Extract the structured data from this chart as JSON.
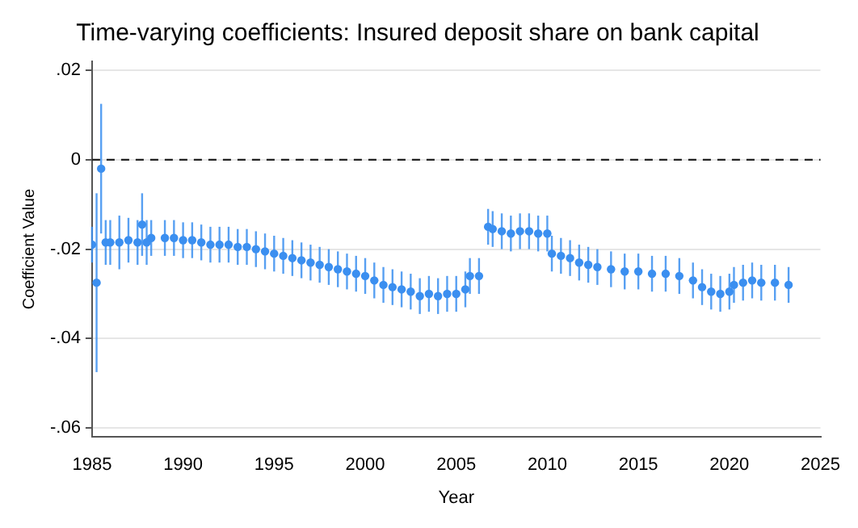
{
  "chart_data": {
    "type": "scatter",
    "title": "Time-varying coefficients: Insured deposit share on bank capital",
    "xlabel": "Year",
    "ylabel": "Coefficient Value",
    "x": [
      1985,
      1985.25,
      1985.5,
      1985.75,
      1986,
      1986.5,
      1987,
      1987.5,
      1987.75,
      1988,
      1988.25,
      1989,
      1989.5,
      1990,
      1990.5,
      1991,
      1991.5,
      1992,
      1992.5,
      1993,
      1993.5,
      1994,
      1994.5,
      1995,
      1995.5,
      1996,
      1996.5,
      1997,
      1997.5,
      1998,
      1998.5,
      1999,
      1999.5,
      2000,
      2000.5,
      2001,
      2001.5,
      2002,
      2002.5,
      2003,
      2003.5,
      2004,
      2004.5,
      2005,
      2005.5,
      2005.75,
      2006.25,
      2006.75,
      2007,
      2007.5,
      2008,
      2008.5,
      2009,
      2009.5,
      2010,
      2010.25,
      2010.75,
      2011.25,
      2011.75,
      2012.25,
      2012.75,
      2013.5,
      2014.25,
      2015,
      2015.75,
      2016.5,
      2017.25,
      2018,
      2018.5,
      2019,
      2019.5,
      2020,
      2020.25,
      2020.75,
      2021.25,
      2021.75,
      2022.5,
      2023.25
    ],
    "series": [
      {
        "color": "#3b8ff0",
        "values": [
          -0.019,
          -0.0275,
          -0.002,
          -0.0185,
          -0.0185,
          -0.0185,
          -0.018,
          -0.0185,
          -0.0145,
          -0.0185,
          -0.0175,
          -0.0175,
          -0.0175,
          -0.018,
          -0.018,
          -0.0185,
          -0.019,
          -0.019,
          -0.019,
          -0.0195,
          -0.0195,
          -0.02,
          -0.0205,
          -0.021,
          -0.0215,
          -0.022,
          -0.0225,
          -0.023,
          -0.0235,
          -0.024,
          -0.0245,
          -0.025,
          -0.0255,
          -0.026,
          -0.027,
          -0.028,
          -0.0285,
          -0.029,
          -0.0295,
          -0.0305,
          -0.03,
          -0.0305,
          -0.03,
          -0.03,
          -0.029,
          -0.026,
          -0.026,
          -0.015,
          -0.0155,
          -0.016,
          -0.0165,
          -0.016,
          -0.016,
          -0.0165,
          -0.0165,
          -0.021,
          -0.0215,
          -0.022,
          -0.023,
          -0.0235,
          -0.024,
          -0.0245,
          -0.025,
          -0.025,
          -0.0255,
          -0.0255,
          -0.026,
          -0.027,
          -0.0285,
          -0.0295,
          -0.03,
          -0.0295,
          -0.028,
          -0.0275,
          -0.027,
          -0.0275,
          -0.0275,
          -0.028
        ],
        "errors": [
          0.004,
          0.02,
          0.0145,
          0.005,
          0.005,
          0.006,
          0.005,
          0.005,
          0.007,
          0.005,
          0.004,
          0.004,
          0.004,
          0.004,
          0.004,
          0.004,
          0.004,
          0.004,
          0.004,
          0.004,
          0.004,
          0.004,
          0.004,
          0.004,
          0.004,
          0.004,
          0.004,
          0.004,
          0.004,
          0.004,
          0.004,
          0.004,
          0.004,
          0.004,
          0.004,
          0.004,
          0.004,
          0.004,
          0.004,
          0.004,
          0.004,
          0.004,
          0.004,
          0.004,
          0.004,
          0.004,
          0.004,
          0.004,
          0.004,
          0.004,
          0.004,
          0.004,
          0.004,
          0.004,
          0.004,
          0.004,
          0.004,
          0.004,
          0.004,
          0.004,
          0.004,
          0.004,
          0.004,
          0.004,
          0.004,
          0.004,
          0.004,
          0.004,
          0.004,
          0.004,
          0.004,
          0.004,
          0.004,
          0.004,
          0.004,
          0.004,
          0.004,
          0.004
        ]
      }
    ],
    "xlim": [
      1985,
      2025
    ],
    "xticks": [
      1985,
      1990,
      1995,
      2000,
      2005,
      2010,
      2015,
      2020,
      2025
    ],
    "ylim": [
      -0.062,
      0.022
    ],
    "yticks": [
      {
        "value": -0.06,
        "label": "-.06"
      },
      {
        "value": -0.04,
        "label": "-.04"
      },
      {
        "value": -0.02,
        "label": "-.02"
      },
      0,
      {
        "value": 0.02,
        "label": ".02"
      }
    ],
    "ref_lines": [
      {
        "axis": "y",
        "value": 0,
        "color": "#222222",
        "line_style": "dashed"
      }
    ],
    "grid": "y",
    "marker": "circle",
    "legend": false
  }
}
